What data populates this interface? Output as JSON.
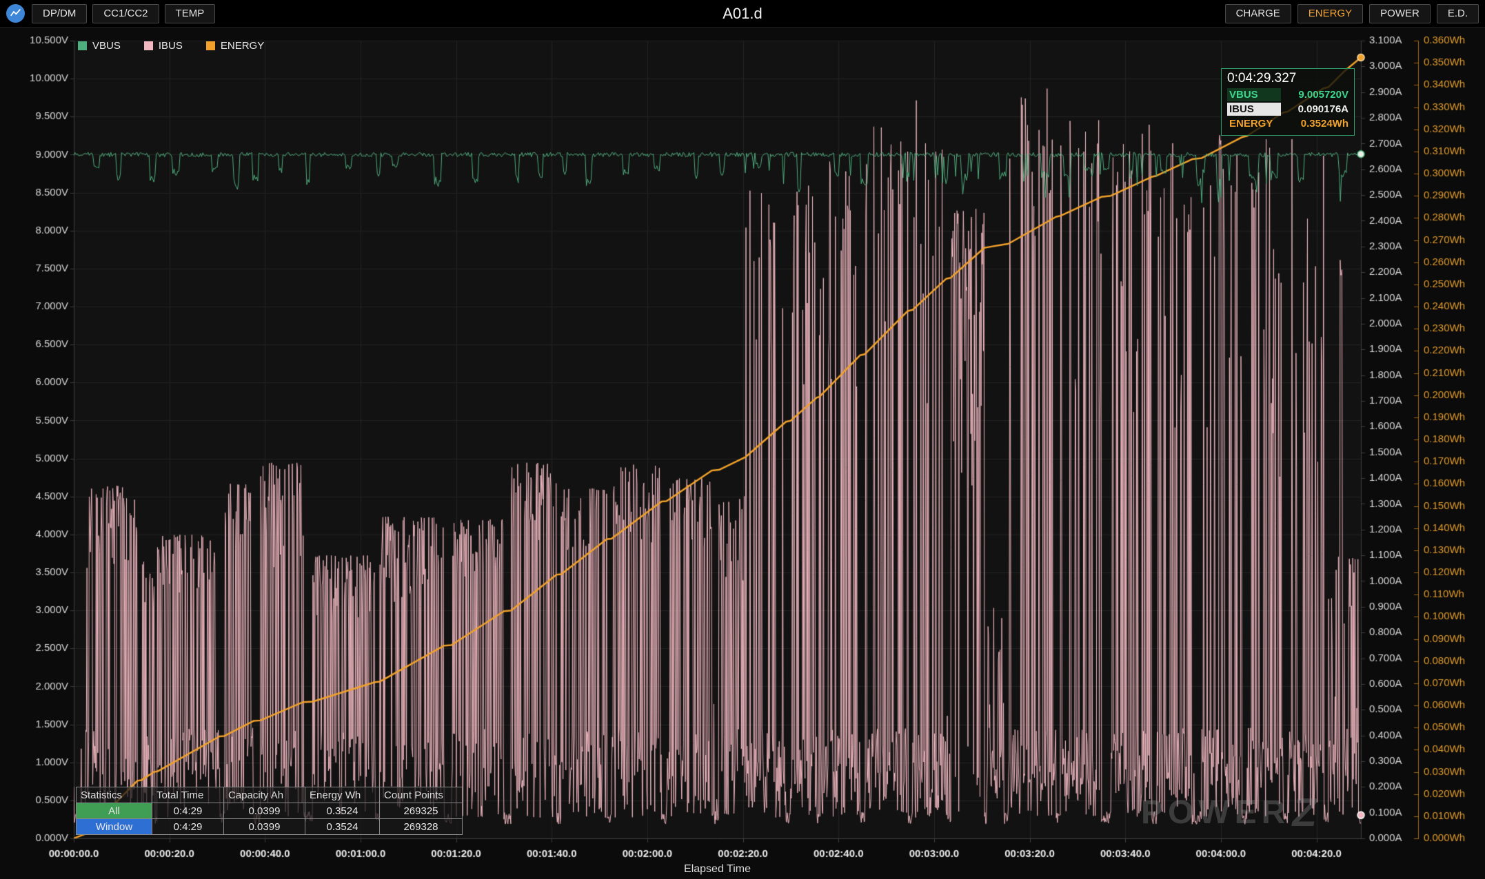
{
  "topbar": {
    "title": "A01.d",
    "tabs_left": [
      {
        "label": "DP/DM"
      },
      {
        "label": "CC1/CC2"
      },
      {
        "label": "TEMP"
      }
    ],
    "tabs_right": [
      {
        "label": "CHARGE",
        "color": "#e3e3e3"
      },
      {
        "label": "ENERGY",
        "color": "#f0a136"
      },
      {
        "label": "POWER",
        "color": "#e3e3e3"
      },
      {
        "label": "E.D.",
        "color": "#e3e3e3"
      }
    ]
  },
  "legend": [
    {
      "label": "VBUS",
      "color": "#4fae7e"
    },
    {
      "label": "IBUS",
      "color": "#f1b8c1"
    },
    {
      "label": "ENERGY",
      "color": "#f2a22b"
    }
  ],
  "tooltip": {
    "time": "0:04:29.327",
    "border_color": "#2f9e68",
    "rows": [
      {
        "label": "VBUS",
        "value": "9.005720V",
        "color": "#3fd68f",
        "chip_bg": "#11381f",
        "chip_text": "#3fd68f"
      },
      {
        "label": "IBUS",
        "value": "0.090176A",
        "color": "#f0f0f0",
        "chip_bg": "#e6e6e6",
        "chip_text": "#141414"
      },
      {
        "label": "ENERGY",
        "value": "0.3524Wh",
        "color": "#f2a22b",
        "chip_bg": "transparent",
        "chip_text": "#f2a22b"
      }
    ]
  },
  "stats_table": {
    "headers": [
      "Statistics",
      "Total Time",
      "Capacity Ah",
      "Energy Wh",
      "Count Points"
    ],
    "rows": [
      {
        "label": "All",
        "label_bg": "#3f9e53",
        "total_time": "0:4:29",
        "capacity_ah": "0.0399",
        "energy_wh": "0.3524",
        "count_points": "269325"
      },
      {
        "label": "Window",
        "label_bg": "#2e6fd4",
        "total_time": "0:4:29",
        "capacity_ah": "0.0399",
        "energy_wh": "0.3524",
        "count_points": "269328"
      }
    ]
  },
  "watermark": {
    "text": "POWER",
    "z": "Z"
  },
  "chart_data": {
    "type": "line",
    "title": "A01.d",
    "xlabel": "Elapsed Time",
    "legend_position": "top-left",
    "grid": true,
    "grid_color": "#232323",
    "axis_color": "#3f3f3f",
    "plot_bg": "#121212",
    "x_max_seconds": 269.3,
    "x_ticks": [
      {
        "t": 0,
        "label": "00:00:00.0"
      },
      {
        "t": 20,
        "label": "00:00:20.0"
      },
      {
        "t": 40,
        "label": "00:00:40.0"
      },
      {
        "t": 60,
        "label": "00:01:00.0"
      },
      {
        "t": 80,
        "label": "00:01:20.0"
      },
      {
        "t": 100,
        "label": "00:01:40.0"
      },
      {
        "t": 120,
        "label": "00:02:00.0"
      },
      {
        "t": 140,
        "label": "00:02:20.0"
      },
      {
        "t": 160,
        "label": "00:02:40.0"
      },
      {
        "t": 180,
        "label": "00:03:00.0"
      },
      {
        "t": 200,
        "label": "00:03:20.0"
      },
      {
        "t": 220,
        "label": "00:03:40.0"
      },
      {
        "t": 240,
        "label": "00:04:00.0"
      },
      {
        "t": 260,
        "label": "00:04:20.0"
      }
    ],
    "axes": {
      "voltage": {
        "min": 0,
        "max": 10.5,
        "unit": "V",
        "color": "#d8d8d8",
        "labels": [
          "0.000V",
          "0.500V",
          "1.000V",
          "1.500V",
          "2.000V",
          "2.500V",
          "3.000V",
          "3.500V",
          "4.000V",
          "4.500V",
          "5.000V",
          "5.500V",
          "6.000V",
          "6.500V",
          "7.000V",
          "7.500V",
          "8.000V",
          "8.500V",
          "9.000V",
          "9.500V",
          "10.000V",
          "10.500V"
        ]
      },
      "current": {
        "min": 0,
        "max": 3.1,
        "unit": "A",
        "color": "#d8d8d8",
        "labels": [
          "0.000A",
          "0.100A",
          "0.200A",
          "0.300A",
          "0.400A",
          "0.500A",
          "0.600A",
          "0.700A",
          "0.800A",
          "0.900A",
          "1.000A",
          "1.100A",
          "1.200A",
          "1.300A",
          "1.400A",
          "1.500A",
          "1.600A",
          "1.700A",
          "1.800A",
          "1.900A",
          "2.000A",
          "2.100A",
          "2.200A",
          "2.300A",
          "2.400A",
          "2.500A",
          "2.600A",
          "2.700A",
          "2.800A",
          "2.900A",
          "3.000A",
          "3.100A"
        ]
      },
      "energy": {
        "min": 0,
        "max": 0.36,
        "unit": "Wh",
        "color": "#e09b2d",
        "axis_line_color": "#a06a10",
        "labels": [
          "0.000Wh",
          "0.010Wh",
          "0.020Wh",
          "0.030Wh",
          "0.040Wh",
          "0.050Wh",
          "0.060Wh",
          "0.070Wh",
          "0.080Wh",
          "0.090Wh",
          "0.100Wh",
          "0.110Wh",
          "0.120Wh",
          "0.130Wh",
          "0.140Wh",
          "0.150Wh",
          "0.160Wh",
          "0.170Wh",
          "0.180Wh",
          "0.190Wh",
          "0.200Wh",
          "0.210Wh",
          "0.220Wh",
          "0.230Wh",
          "0.240Wh",
          "0.250Wh",
          "0.260Wh",
          "0.270Wh",
          "0.280Wh",
          "0.290Wh",
          "0.300Wh",
          "0.310Wh",
          "0.320Wh",
          "0.330Wh",
          "0.340Wh",
          "0.350Wh",
          "0.360Wh"
        ]
      }
    },
    "series": [
      {
        "name": "VBUS",
        "axis": "voltage",
        "color": "#4fae7e",
        "base": 9.0,
        "noise": 0.06,
        "end_value": 9.00572,
        "dips": {
          "min_gap_s": 2.5,
          "max_gap_s": 8,
          "min_depth": 0.15,
          "max_depth": 0.45,
          "min_len_s": 0.4,
          "max_len_s": 1.6
        }
      },
      {
        "name": "IBUS",
        "axis": "current",
        "color": "#f1b8c1",
        "base": 0.09,
        "end_value": 0.090176,
        "bursts": [
          [
            264.9,
            265.4,
            2.15,
            2.27,
            0.95
          ],
          [
            2.4,
            13.3,
            1.05,
            1.37,
            0.55
          ],
          [
            14.2,
            16.8,
            0.85,
            1.08,
            0.5
          ],
          [
            17.5,
            30.5,
            0.95,
            1.18,
            0.55
          ],
          [
            31.5,
            37.6,
            1.1,
            1.38,
            0.5
          ],
          [
            39,
            48,
            1.05,
            1.46,
            0.5
          ],
          [
            50,
            63,
            0.85,
            1.1,
            0.5
          ],
          [
            64,
            77.5,
            0.9,
            1.25,
            0.5
          ],
          [
            79,
            90,
            1.0,
            1.24,
            0.5
          ],
          [
            91.5,
            101,
            1.15,
            1.46,
            0.5
          ],
          [
            102,
            111.5,
            1.1,
            1.36,
            0.5
          ],
          [
            112.5,
            123,
            1.15,
            1.46,
            0.5
          ],
          [
            124,
            133.5,
            1.1,
            1.4,
            0.5
          ],
          [
            135,
            140.5,
            1.0,
            1.33,
            0.45
          ],
          [
            140.5,
            149,
            1.7,
            2.54,
            0.22
          ],
          [
            150,
            155.5,
            1.6,
            2.55,
            0.3
          ],
          [
            156,
            164.5,
            1.7,
            2.63,
            0.25
          ],
          [
            165.5,
            174.5,
            1.7,
            2.77,
            0.28
          ],
          [
            175.5,
            182.5,
            1.6,
            2.87,
            0.22
          ],
          [
            183.5,
            190.5,
            1.35,
            2.45,
            0.85
          ],
          [
            191,
            194.5,
            0.3,
            0.9,
            0.35
          ],
          [
            195.5,
            205.5,
            1.6,
            2.92,
            0.25
          ],
          [
            206.5,
            215,
            1.5,
            2.8,
            0.25
          ],
          [
            217,
            225.5,
            1.5,
            2.78,
            0.28
          ],
          [
            226.5,
            234,
            1.5,
            2.76,
            0.25
          ],
          [
            236,
            244.5,
            1.5,
            2.78,
            0.28
          ],
          [
            245.5,
            253,
            1.4,
            2.72,
            0.25
          ],
          [
            254,
            261.5,
            1.4,
            2.72,
            0.28
          ],
          [
            262.5,
            268.8,
            0.25,
            1.1,
            0.5
          ]
        ]
      },
      {
        "name": "ENERGY",
        "axis": "energy",
        "color": "#f2a22b",
        "end_value": 0.3524,
        "keypoints": [
          [
            0,
            0
          ],
          [
            2.4,
            0.002
          ],
          [
            13.3,
            0.026
          ],
          [
            14.2,
            0.0263
          ],
          [
            16.8,
            0.03
          ],
          [
            17.5,
            0.0302
          ],
          [
            30.5,
            0.046
          ],
          [
            31.5,
            0.0462
          ],
          [
            37.6,
            0.053
          ],
          [
            39,
            0.0532
          ],
          [
            48,
            0.0615
          ],
          [
            50,
            0.0617
          ],
          [
            63,
            0.0705
          ],
          [
            64,
            0.0707
          ],
          [
            77.5,
            0.087
          ],
          [
            79,
            0.0872
          ],
          [
            90,
            0.1025
          ],
          [
            91.5,
            0.1028
          ],
          [
            101,
            0.119
          ],
          [
            102,
            0.1192
          ],
          [
            111.5,
            0.135
          ],
          [
            112.5,
            0.1352
          ],
          [
            123,
            0.152
          ],
          [
            124,
            0.1522
          ],
          [
            133.5,
            0.166
          ],
          [
            135,
            0.1663
          ],
          [
            140.5,
            0.172
          ],
          [
            149,
            0.188
          ],
          [
            150,
            0.1885
          ],
          [
            155.5,
            0.199
          ],
          [
            156,
            0.1992
          ],
          [
            164.5,
            0.218
          ],
          [
            165.5,
            0.2185
          ],
          [
            174.5,
            0.238
          ],
          [
            175.5,
            0.2385
          ],
          [
            182.5,
            0.2525
          ],
          [
            183.5,
            0.253
          ],
          [
            190.5,
            0.2665
          ],
          [
            191,
            0.2667
          ],
          [
            194.5,
            0.268
          ],
          [
            195.5,
            0.2683
          ],
          [
            205.5,
            0.2805
          ],
          [
            206.5,
            0.281
          ],
          [
            215,
            0.2895
          ],
          [
            217,
            0.29
          ],
          [
            225.5,
            0.2985
          ],
          [
            226.5,
            0.299
          ],
          [
            234,
            0.3065
          ],
          [
            236,
            0.307
          ],
          [
            244.5,
            0.3165
          ],
          [
            245.5,
            0.317
          ],
          [
            253,
            0.3275
          ],
          [
            254,
            0.328
          ],
          [
            261.5,
            0.3385
          ],
          [
            262.5,
            0.339
          ],
          [
            266,
            0.3465
          ],
          [
            269.3,
            0.3524
          ]
        ]
      }
    ]
  }
}
